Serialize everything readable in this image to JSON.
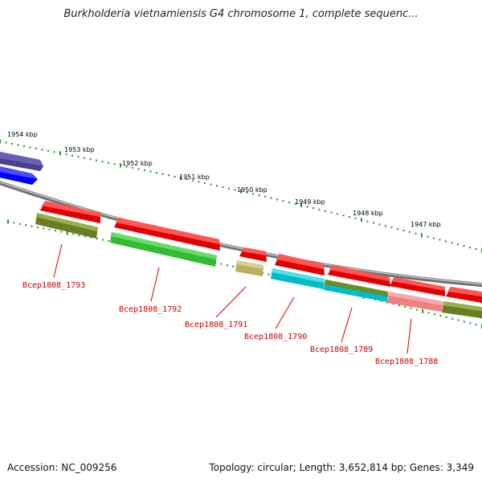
{
  "title": "Burkholderia vietnamiensis G4 chromosome 1, complete sequenc...",
  "footer": {
    "accession": "Accession: NC_009256",
    "summary": "Topology: circular; Length: 3,652,814 bp; Genes: 3,349"
  },
  "ruler": {
    "labels": [
      "1954 kbp",
      "1953 kbp",
      "1952 kbp",
      "1951 kbp",
      "1950 kbp",
      "1949 kbp",
      "1948 kbp",
      "1947 kbp"
    ]
  },
  "gene_labels": [
    "Bcep1808_1793",
    "Bcep1808_1792",
    "Bcep1808_1791",
    "Bcep1808_1790",
    "Bcep1808_1789",
    "Bcep1808_1788"
  ],
  "colors": {
    "backbone": "#888888",
    "tick": "#2e8b2e",
    "cds_arrow": "#ff0000",
    "feature_olive": "#6b8e23",
    "feature_green": "#33cc33",
    "feature_tan": "#bdb76b",
    "feature_cyan": "#00cccc",
    "feature_pink": "#f08080",
    "feature_navy": "#4b3f8f",
    "feature_blue": "#0000ff",
    "label_red": "#cc0000"
  }
}
